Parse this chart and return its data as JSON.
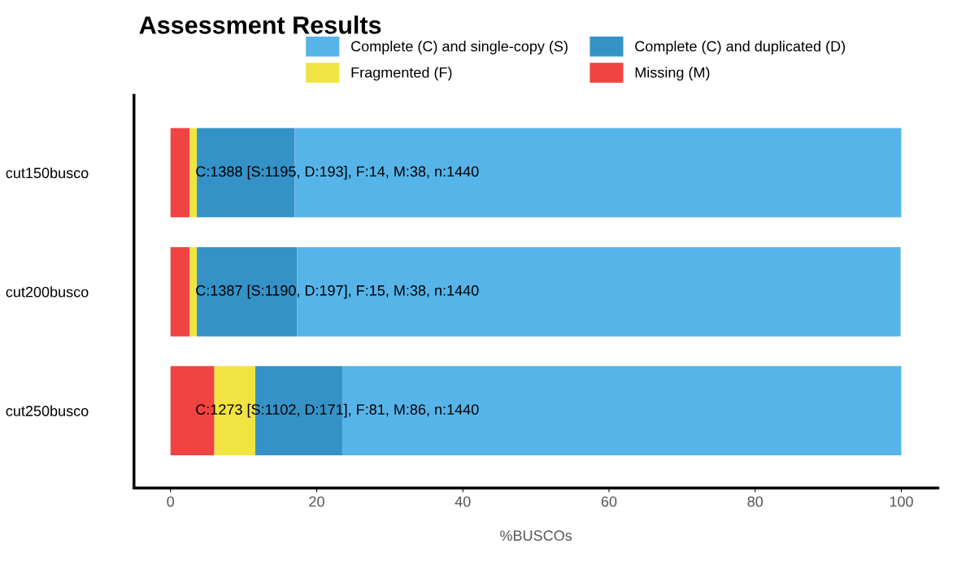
{
  "chart_data": {
    "type": "bar",
    "orientation": "horizontal",
    "stacked": true,
    "title": "Assessment Results",
    "xlabel": "%BUSCOs",
    "categories": [
      "cut150busco",
      "cut200busco",
      "cut250busco"
    ],
    "series": [
      {
        "name": "Missing (M)",
        "color": "#f04442",
        "values": [
          2.6,
          2.6,
          6.0
        ]
      },
      {
        "name": "Fragmented (F)",
        "color": "#f0e442",
        "values": [
          1.0,
          1.0,
          5.6
        ]
      },
      {
        "name": "Complete (C) and duplicated (D)",
        "color": "#3492c7",
        "values": [
          13.4,
          13.7,
          11.9
        ]
      },
      {
        "name": "Complete (C) and single-copy (S)",
        "color": "#56b4e9",
        "values": [
          83.0,
          82.6,
          76.5
        ]
      }
    ],
    "annotations": [
      "C:1388 [S:1195, D:193], F:14, M:38, n:1440",
      "C:1387 [S:1190, D:197], F:15, M:38, n:1440",
      "C:1273 [S:1102, D:171], F:81, M:86, n:1440"
    ],
    "xlim": [
      -5,
      105
    ],
    "xticks": [
      0,
      20,
      40,
      60,
      80,
      100
    ],
    "grid": false,
    "legend": "top"
  }
}
